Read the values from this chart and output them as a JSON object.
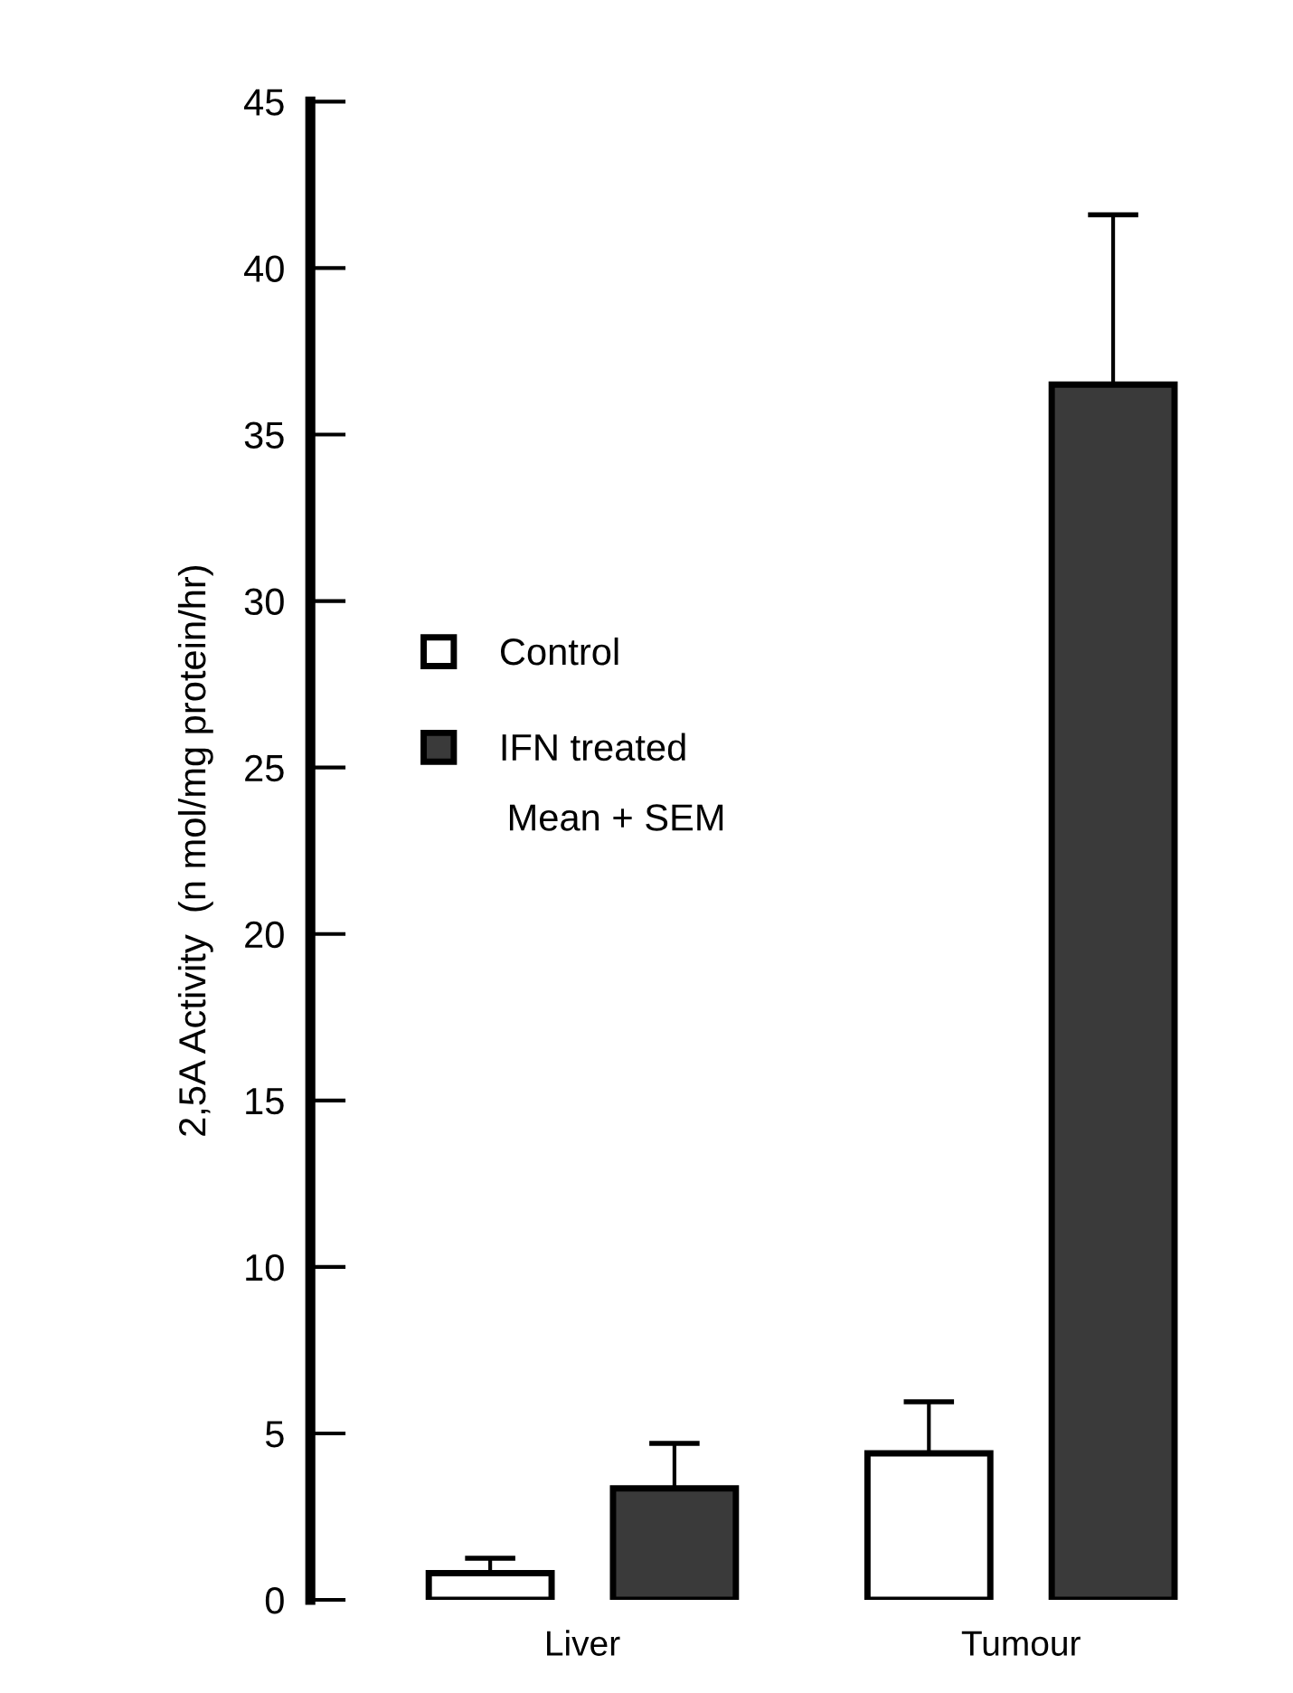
{
  "chart_data": {
    "type": "bar",
    "ylabel": "2,5A Activity  (n mol/mg protein/hr)",
    "categories": [
      "Liver",
      "Tumour"
    ],
    "series": [
      {
        "name": "Control",
        "color": "#ffffff",
        "values": [
          0.8,
          4.4
        ],
        "errors": [
          [
            0.8,
            1.25
          ],
          [
            4.4,
            5.95
          ]
        ]
      },
      {
        "name": "IFN treated",
        "color": "#3a3a3a",
        "values": [
          3.35,
          36.5
        ],
        "errors": [
          [
            3.35,
            4.7
          ],
          [
            36.5,
            41.6
          ]
        ]
      }
    ],
    "ylim": [
      0,
      45
    ],
    "yticks": [
      0,
      5,
      10,
      15,
      20,
      25,
      30,
      35,
      40,
      45
    ],
    "legend": "center left",
    "grid": false,
    "annotations": [
      "Mean + SEM"
    ]
  }
}
